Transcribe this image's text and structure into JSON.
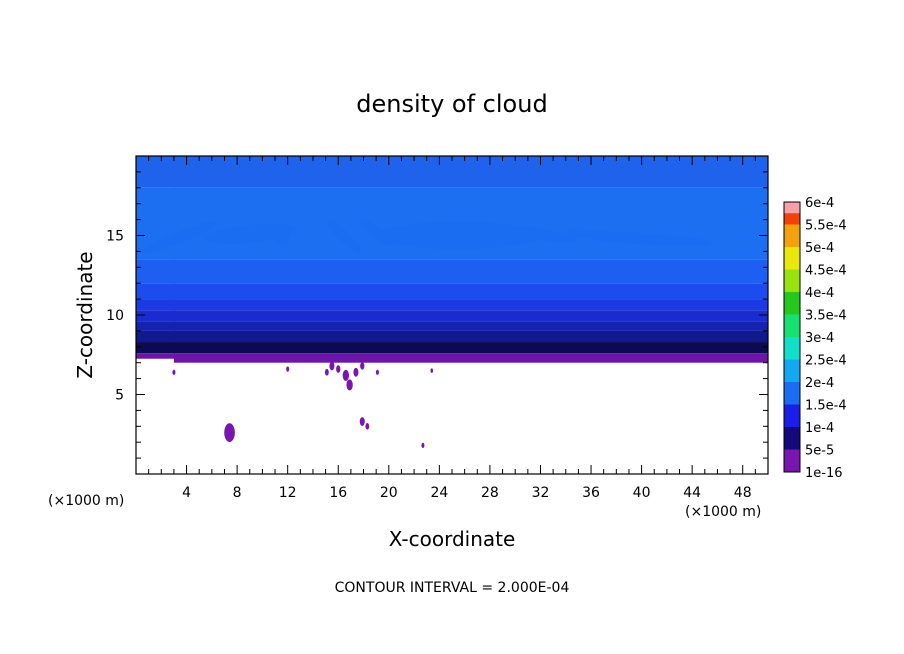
{
  "chart_data": {
    "type": "heatmap",
    "title": "density of cloud",
    "xlabel": "X-coordinate",
    "ylabel": "Z-coordinate",
    "x_unit": "(×1000 m)",
    "z_unit": "(×1000 m)",
    "xlim": [
      0,
      50
    ],
    "ylim": [
      0,
      20
    ],
    "x_ticks": [
      4,
      8,
      12,
      16,
      20,
      24,
      28,
      32,
      36,
      40,
      44,
      48
    ],
    "y_ticks": [
      5,
      10,
      15
    ],
    "footnote": "CONTOUR INTERVAL = 2.000E-04",
    "colorbar": {
      "levels": [
        "1e-16",
        "5e-5",
        "1e-4",
        "1.5e-4",
        "2e-4",
        "2.5e-4",
        "3e-4",
        "3.5e-4",
        "4e-4",
        "4.5e-4",
        "5e-4",
        "5.5e-4",
        "6e-4"
      ],
      "colors": [
        "#7a16b0",
        "#140a7a",
        "#1a1fe8",
        "#1a6cf0",
        "#13a8f0",
        "#11e0c8",
        "#15e070",
        "#27c81e",
        "#9ae20f",
        "#e8e80c",
        "#f2a20c",
        "#f2420c",
        "#f8a0a8"
      ]
    },
    "bands": [
      {
        "z0": 7.0,
        "z1": 7.6,
        "color": "#6c15a8"
      },
      {
        "z0": 7.6,
        "z1": 8.3,
        "color": "#0c0a52"
      },
      {
        "z0": 8.3,
        "z1": 9.0,
        "color": "#111a8c"
      },
      {
        "z0": 9.0,
        "z1": 9.6,
        "color": "#1522b0"
      },
      {
        "z0": 9.6,
        "z1": 10.3,
        "color": "#1a2cd0"
      },
      {
        "z0": 10.3,
        "z1": 11.0,
        "color": "#1b3ae4"
      },
      {
        "z0": 11.0,
        "z1": 12.0,
        "color": "#1c4ced"
      },
      {
        "z0": 12.0,
        "z1": 13.5,
        "color": "#1d5ff0"
      },
      {
        "z0": 13.5,
        "z1": 18.0,
        "color": "#1d6ff1"
      },
      {
        "z0": 18.0,
        "z1": 20.0,
        "color": "#1f62ec"
      }
    ],
    "light_patches": [
      {
        "x": 3.5,
        "z": 14.9,
        "rx": 3.2,
        "rz": 0.35,
        "rot": 22
      },
      {
        "x": 9.0,
        "z": 15.1,
        "rx": 3.6,
        "rz": 0.55,
        "rot": 6
      },
      {
        "x": 11.6,
        "z": 14.9,
        "rx": 0.5,
        "rz": 0.6,
        "rot": 0
      },
      {
        "x": 16.5,
        "z": 14.9,
        "rx": 1.8,
        "rz": 0.35,
        "rot": -45
      },
      {
        "x": 19.0,
        "z": 15.2,
        "rx": 1.6,
        "rz": 0.3,
        "rot": -40
      },
      {
        "x": 25.5,
        "z": 15.0,
        "rx": 6.5,
        "rz": 0.85,
        "rot": 0
      },
      {
        "x": 32.0,
        "z": 15.1,
        "rx": 2.2,
        "rz": 0.35,
        "rot": -12
      },
      {
        "x": 34.5,
        "z": 15.0,
        "rx": 0.5,
        "rz": 0.5,
        "rot": -40
      },
      {
        "x": 40.0,
        "z": 14.8,
        "rx": 5.7,
        "rz": 0.35,
        "rot": -4
      }
    ],
    "cloud_base": {
      "z": 7.0,
      "x_min": 3.0,
      "x_max": 50.0
    },
    "purple_specks": [
      {
        "x": 7.4,
        "z": 2.6,
        "r": 0.42
      },
      {
        "x": 3.0,
        "z": 6.4,
        "r": 0.12
      },
      {
        "x": 12.0,
        "z": 6.6,
        "r": 0.12
      },
      {
        "x": 15.1,
        "z": 6.4,
        "r": 0.15
      },
      {
        "x": 15.5,
        "z": 6.8,
        "r": 0.2
      },
      {
        "x": 16.0,
        "z": 6.6,
        "r": 0.17
      },
      {
        "x": 16.6,
        "z": 6.2,
        "r": 0.25
      },
      {
        "x": 16.9,
        "z": 5.6,
        "r": 0.25
      },
      {
        "x": 17.4,
        "z": 6.4,
        "r": 0.2
      },
      {
        "x": 17.9,
        "z": 6.8,
        "r": 0.17
      },
      {
        "x": 19.1,
        "z": 6.4,
        "r": 0.12
      },
      {
        "x": 17.9,
        "z": 3.3,
        "r": 0.2
      },
      {
        "x": 18.3,
        "z": 3.0,
        "r": 0.15
      },
      {
        "x": 22.7,
        "z": 1.8,
        "r": 0.12
      },
      {
        "x": 23.4,
        "z": 6.5,
        "r": 0.1
      }
    ]
  }
}
